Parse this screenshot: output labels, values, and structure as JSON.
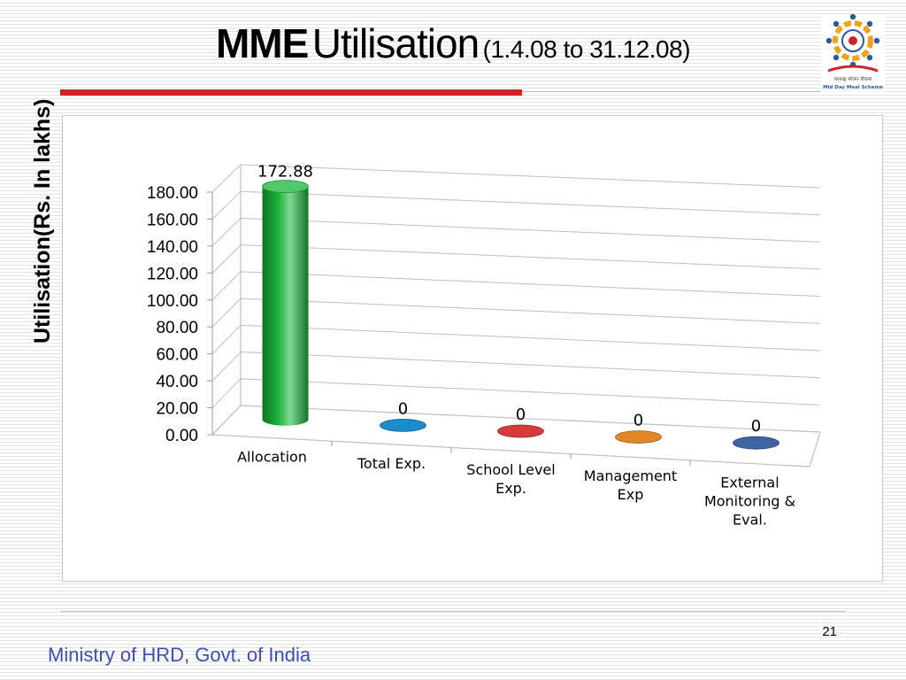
{
  "slide": {
    "title_bold": "MME",
    "title_main": "Utilisation",
    "title_sub": "(1.4.08 to 31.12.08)",
    "logo_caption_hindi": "मध्याह्न भोजन योजना",
    "logo_caption": "Mid Day Meal Scheme",
    "page_number": "21",
    "footer": "Ministry of HRD, Govt. of India"
  },
  "colors": {
    "accent_red": "#d42027",
    "footer_text": "#3d4fb5"
  },
  "chart_data": {
    "type": "bar",
    "title": "",
    "xlabel": "",
    "ylabel": "Utilisation(Rs. In lakhs)",
    "ylim": [
      0,
      180
    ],
    "yticks": [
      "0.00",
      "20.00",
      "40.00",
      "60.00",
      "80.00",
      "100.00",
      "120.00",
      "140.00",
      "160.00",
      "180.00"
    ],
    "categories": [
      [
        "Allocation"
      ],
      [
        "Total Exp."
      ],
      [
        "School Level",
        "Exp."
      ],
      [
        "Management",
        "Exp"
      ],
      [
        "External",
        "Monitoring &",
        "Eval."
      ]
    ],
    "values": [
      172.88,
      0,
      0,
      0,
      0
    ],
    "data_labels": [
      "172.88",
      "0",
      "0",
      "0",
      "0"
    ],
    "bar_colors": [
      "#19b43a",
      "#1b8ccc",
      "#d63a3a",
      "#e0872a",
      "#3f64a4"
    ],
    "grid": true,
    "three_d": true
  }
}
